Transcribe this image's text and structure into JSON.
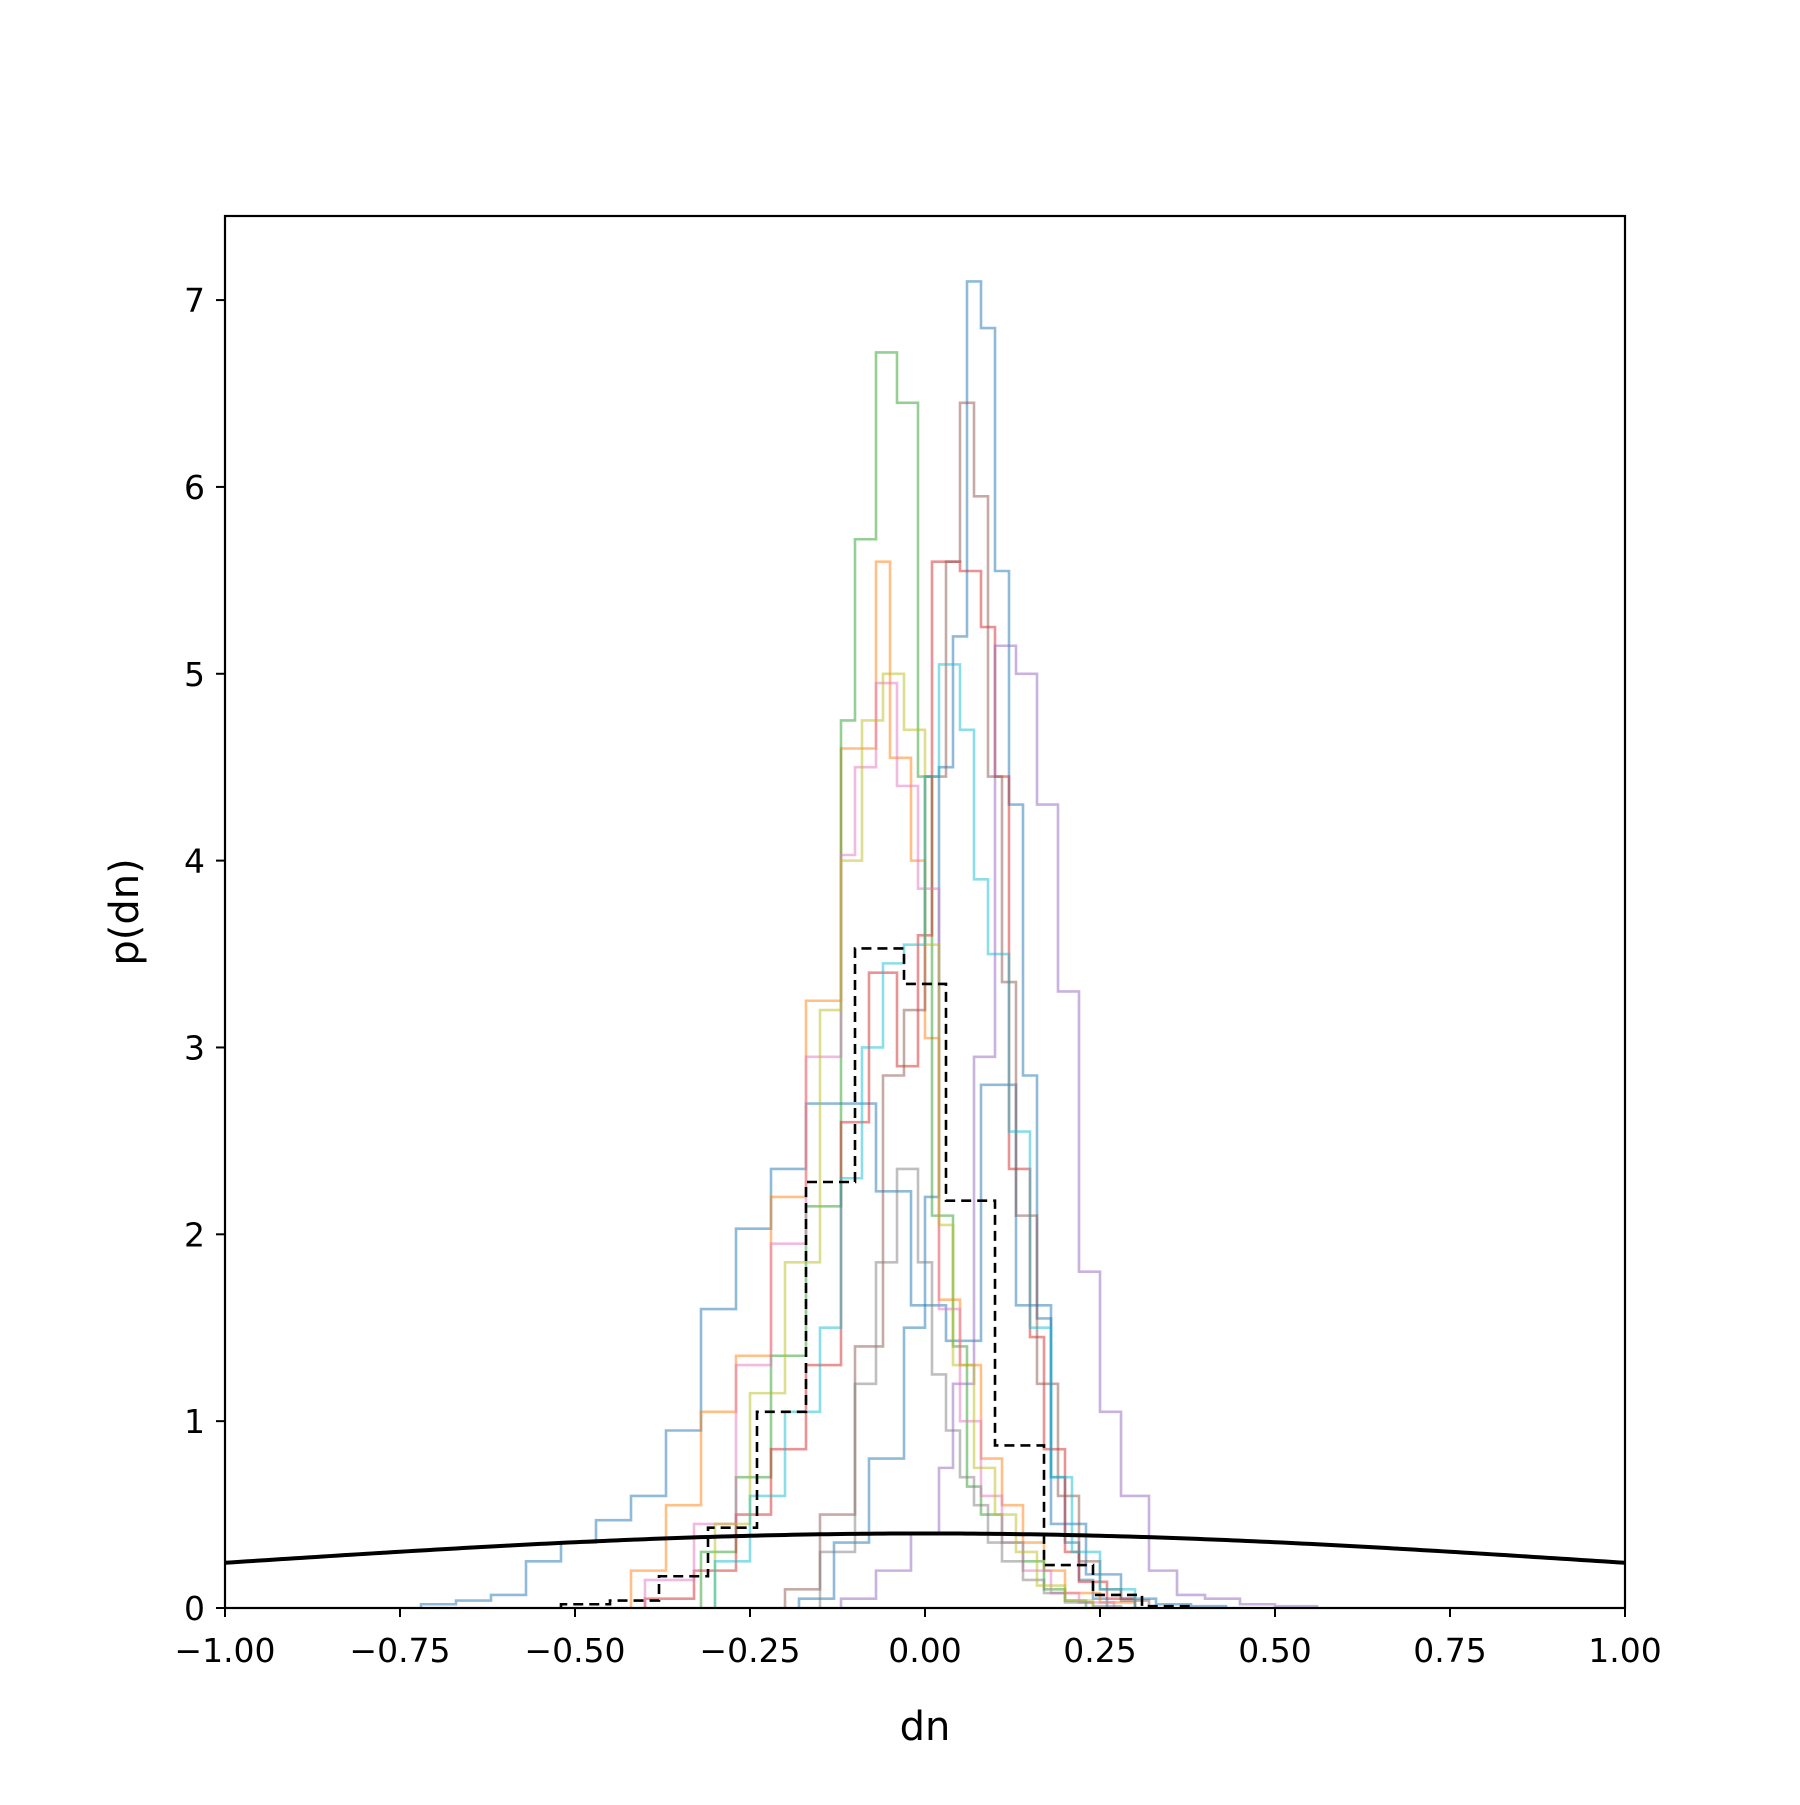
{
  "chart_data": {
    "type": "histogram",
    "title": "",
    "xlabel": "dn",
    "ylabel": "p(dn)",
    "xlim": [
      -1.0,
      1.0
    ],
    "ylim": [
      0,
      7.45
    ],
    "xticks": [
      -1.0,
      -0.75,
      -0.5,
      -0.25,
      0.0,
      0.25,
      0.5,
      0.75,
      1.0
    ],
    "xtick_labels": [
      "−1.00",
      "−0.75",
      "−0.50",
      "−0.25",
      "0.00",
      "0.25",
      "0.50",
      "0.75",
      "1.00"
    ],
    "yticks": [
      0,
      1,
      2,
      3,
      4,
      5,
      6,
      7
    ],
    "ytick_labels": [
      "0",
      "1",
      "2",
      "3",
      "4",
      "5",
      "6",
      "7"
    ],
    "grid": false,
    "legend": "none",
    "series": [
      {
        "color": "#1f77b4",
        "style": "step-alpha",
        "edges": [
          -0.72,
          -0.67,
          -0.62,
          -0.57,
          -0.52,
          -0.47,
          -0.42,
          -0.37,
          -0.32,
          -0.27,
          -0.22,
          -0.17,
          -0.12,
          -0.07,
          -0.02,
          0.03,
          0.08,
          0.13,
          0.18,
          0.23,
          0.28,
          0.33,
          0.38,
          0.43
        ],
        "values": [
          0.02,
          0.04,
          0.07,
          0.25,
          0.35,
          0.47,
          0.6,
          0.95,
          1.6,
          2.03,
          2.35,
          2.7,
          2.7,
          2.23,
          1.62,
          1.43,
          2.8,
          1.62,
          0.45,
          0.18,
          0.05,
          0.02,
          0.01
        ]
      },
      {
        "color": "#1f77b4",
        "style": "step-alpha",
        "edges": [
          -0.18,
          -0.13,
          -0.08,
          -0.03,
          0.0,
          0.02,
          0.04,
          0.06,
          0.08,
          0.1,
          0.12,
          0.14,
          0.16,
          0.18,
          0.2,
          0.22,
          0.24,
          0.26
        ],
        "values": [
          0.05,
          0.35,
          0.8,
          1.5,
          2.2,
          4.5,
          5.2,
          7.1,
          6.85,
          5.55,
          4.3,
          2.85,
          1.55,
          0.7,
          0.35,
          0.15,
          0.05
        ]
      },
      {
        "color": "#ff7f0e",
        "style": "step-alpha",
        "edges": [
          -0.42,
          -0.37,
          -0.32,
          -0.27,
          -0.22,
          -0.17,
          -0.12,
          -0.07,
          -0.05,
          -0.02,
          0.0,
          0.02,
          0.05,
          0.08,
          0.11,
          0.14,
          0.17,
          0.2,
          0.25,
          0.3
        ],
        "values": [
          0.2,
          0.55,
          1.05,
          1.35,
          2.2,
          3.25,
          4.6,
          5.6,
          4.55,
          4.0,
          3.05,
          1.65,
          1.3,
          0.8,
          0.55,
          0.35,
          0.2,
          0.08,
          0.03
        ]
      },
      {
        "color": "#2ca02c",
        "style": "step-alpha",
        "edges": [
          -0.32,
          -0.27,
          -0.22,
          -0.17,
          -0.12,
          -0.1,
          -0.07,
          -0.04,
          -0.01,
          0.01,
          0.04,
          0.06,
          0.08,
          0.11,
          0.14,
          0.17,
          0.2,
          0.23
        ],
        "values": [
          0.3,
          0.7,
          1.35,
          2.15,
          4.75,
          5.72,
          6.72,
          6.45,
          4.45,
          2.1,
          1.4,
          0.65,
          0.5,
          0.35,
          0.25,
          0.1,
          0.04
        ]
      },
      {
        "color": "#d62728",
        "style": "step-alpha",
        "edges": [
          -0.4,
          -0.33,
          -0.27,
          -0.22,
          -0.17,
          -0.12,
          -0.08,
          -0.04,
          -0.01,
          0.01,
          0.05,
          0.08,
          0.1,
          0.12,
          0.15,
          0.17,
          0.2,
          0.22,
          0.26,
          0.3
        ],
        "values": [
          0.05,
          0.2,
          0.5,
          0.85,
          1.3,
          2.6,
          3.4,
          2.9,
          3.6,
          5.6,
          5.55,
          5.25,
          4.45,
          2.35,
          1.45,
          0.85,
          0.3,
          0.14,
          0.05
        ]
      },
      {
        "color": "#9467bd",
        "style": "step-alpha",
        "edges": [
          -0.12,
          -0.07,
          -0.02,
          0.02,
          0.04,
          0.07,
          0.1,
          0.13,
          0.16,
          0.19,
          0.22,
          0.25,
          0.28,
          0.32,
          0.36,
          0.4,
          0.45,
          0.5,
          0.56
        ],
        "values": [
          0.05,
          0.2,
          0.4,
          0.75,
          1.2,
          2.95,
          5.15,
          5.0,
          4.3,
          3.3,
          1.8,
          1.05,
          0.6,
          0.2,
          0.07,
          0.05,
          0.02,
          0.01
        ]
      },
      {
        "color": "#8c564b",
        "style": "step-alpha",
        "edges": [
          -0.2,
          -0.15,
          -0.1,
          -0.06,
          -0.03,
          0.0,
          0.03,
          0.05,
          0.07,
          0.09,
          0.11,
          0.13,
          0.16,
          0.19,
          0.22,
          0.25,
          0.28,
          0.32
        ],
        "values": [
          0.1,
          0.5,
          1.4,
          2.85,
          3.2,
          4.45,
          5.6,
          6.45,
          5.95,
          4.45,
          3.35,
          2.1,
          1.2,
          0.6,
          0.25,
          0.1,
          0.04
        ]
      },
      {
        "color": "#e377c2",
        "style": "step-alpha",
        "edges": [
          -0.4,
          -0.33,
          -0.27,
          -0.22,
          -0.17,
          -0.12,
          -0.1,
          -0.07,
          -0.04,
          -0.01,
          0.02,
          0.05,
          0.08,
          0.11,
          0.14,
          0.18,
          0.22,
          0.27
        ],
        "values": [
          0.15,
          0.45,
          1.3,
          1.95,
          2.95,
          4.03,
          4.5,
          4.95,
          4.4,
          3.85,
          1.6,
          1.0,
          0.6,
          0.35,
          0.2,
          0.08,
          0.03
        ]
      },
      {
        "color": "#7f7f7f",
        "style": "step-alpha",
        "edges": [
          -0.15,
          -0.1,
          -0.07,
          -0.04,
          -0.01,
          0.01,
          0.03,
          0.05,
          0.07,
          0.09,
          0.11,
          0.14,
          0.17,
          0.2,
          0.24,
          0.28
        ],
        "values": [
          0.3,
          1.2,
          1.85,
          2.35,
          1.85,
          1.25,
          0.95,
          0.7,
          0.55,
          0.35,
          0.25,
          0.15,
          0.08,
          0.03,
          0.01
        ]
      },
      {
        "color": "#bcbd22",
        "style": "step-alpha",
        "edges": [
          -0.3,
          -0.25,
          -0.2,
          -0.15,
          -0.12,
          -0.09,
          -0.06,
          -0.03,
          0.0,
          0.02,
          0.04,
          0.07,
          0.1,
          0.13,
          0.16,
          0.2,
          0.24
        ],
        "values": [
          0.45,
          1.15,
          1.85,
          3.2,
          4.0,
          4.75,
          5.0,
          4.7,
          3.55,
          2.05,
          1.3,
          0.75,
          0.5,
          0.3,
          0.12,
          0.04
        ]
      },
      {
        "color": "#17becf",
        "style": "step-alpha",
        "edges": [
          -0.3,
          -0.25,
          -0.2,
          -0.15,
          -0.12,
          -0.09,
          -0.06,
          -0.03,
          0.0,
          0.02,
          0.05,
          0.07,
          0.09,
          0.12,
          0.15,
          0.18,
          0.21,
          0.25,
          0.3
        ],
        "values": [
          0.25,
          0.6,
          1.05,
          1.5,
          2.3,
          3.0,
          3.45,
          3.55,
          4.45,
          5.05,
          4.7,
          3.9,
          3.5,
          2.55,
          1.5,
          0.7,
          0.3,
          0.1
        ]
      },
      {
        "color": "#000000",
        "style": "step-dashed",
        "edges": [
          -0.52,
          -0.45,
          -0.38,
          -0.31,
          -0.24,
          -0.17,
          -0.1,
          -0.03,
          0.03,
          0.1,
          0.17,
          0.24,
          0.31,
          0.38
        ],
        "values": [
          0.02,
          0.04,
          0.17,
          0.43,
          1.05,
          2.28,
          3.53,
          3.34,
          2.18,
          0.87,
          0.23,
          0.07,
          0.01
        ]
      },
      {
        "color": "#000000",
        "style": "curve-solid",
        "function": "normal",
        "mu": 0.0,
        "sigma": 1.0
      }
    ]
  }
}
